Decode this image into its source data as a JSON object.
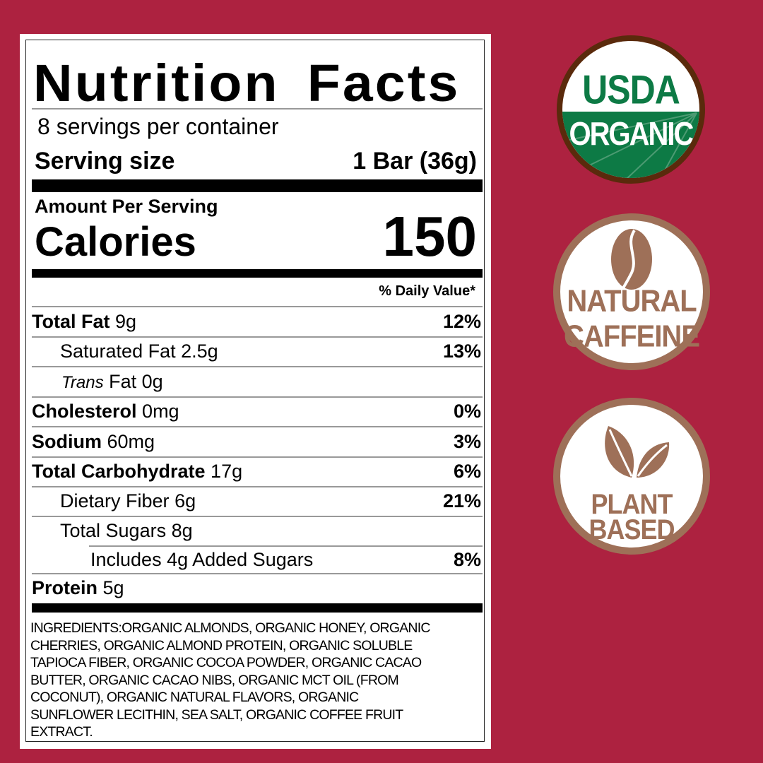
{
  "label": {
    "title": "Nutrition Facts",
    "servings_per_container": "8 servings per container",
    "serving_size_label": "Serving size",
    "serving_size_value": "1 Bar (36g)",
    "amount_per_serving": "Amount Per Serving",
    "calories_label": "Calories",
    "calories_value": "150",
    "daily_value_header": "% Daily Value*",
    "nutrients": [
      {
        "name": "Total Fat",
        "amount": "9g",
        "dv": "12%"
      },
      {
        "name": "Saturated Fat",
        "amount": "2.5g",
        "dv": "13%"
      },
      {
        "name": "Trans",
        "name2": "Fat",
        "amount": "0g",
        "dv": ""
      },
      {
        "name": "Cholesterol",
        "amount": "0mg",
        "dv": "0%"
      },
      {
        "name": "Sodium",
        "amount": "60mg",
        "dv": "3%"
      },
      {
        "name": "Total Carbohydrate",
        "amount": "17g",
        "dv": "6%"
      },
      {
        "name": "Dietary Fiber",
        "amount": "6g",
        "dv": "21%"
      },
      {
        "name": "Total Sugars",
        "amount": "8g",
        "dv": ""
      },
      {
        "name": "Includes 4g Added Sugars",
        "amount": "",
        "dv": "8%"
      },
      {
        "name": "Protein",
        "amount": "5g",
        "dv": ""
      }
    ],
    "ingredients_lines": [
      "INGREDIENTS:ORGANIC ALMONDS, ORGANIC HONEY, ORGANIC",
      "CHERRIES, ORGANIC ALMOND PROTEIN, ORGANIC SOLUBLE",
      "TAPIOCA FIBER, ORGANIC COCOA POWDER, ORGANIC CACAO",
      "BUTTER, ORGANIC CACAO NIBS, ORGANIC MCT OIL (FROM",
      "COCONUT), ORGANIC NATURAL FLAVORS, ORGANIC",
      "SUNFLOWER LECITHIN, SEA SALT, ORGANIC COFFEE FRUIT",
      "EXTRACT."
    ]
  },
  "badges": {
    "usda": {
      "line1": "USDA",
      "line2": "ORGANIC",
      "green": "#0d7a45",
      "ring": "#5a2a0c"
    },
    "caffeine": {
      "line1": "NATURAL",
      "line2": "CAFFEINE",
      "icon": "coffee-bean-icon",
      "color": "#9e7058"
    },
    "plant": {
      "line1": "PLANT",
      "line2": "BASED",
      "icon": "leaves-icon",
      "color": "#9e7058"
    }
  },
  "colors": {
    "background": "#ad2240"
  }
}
